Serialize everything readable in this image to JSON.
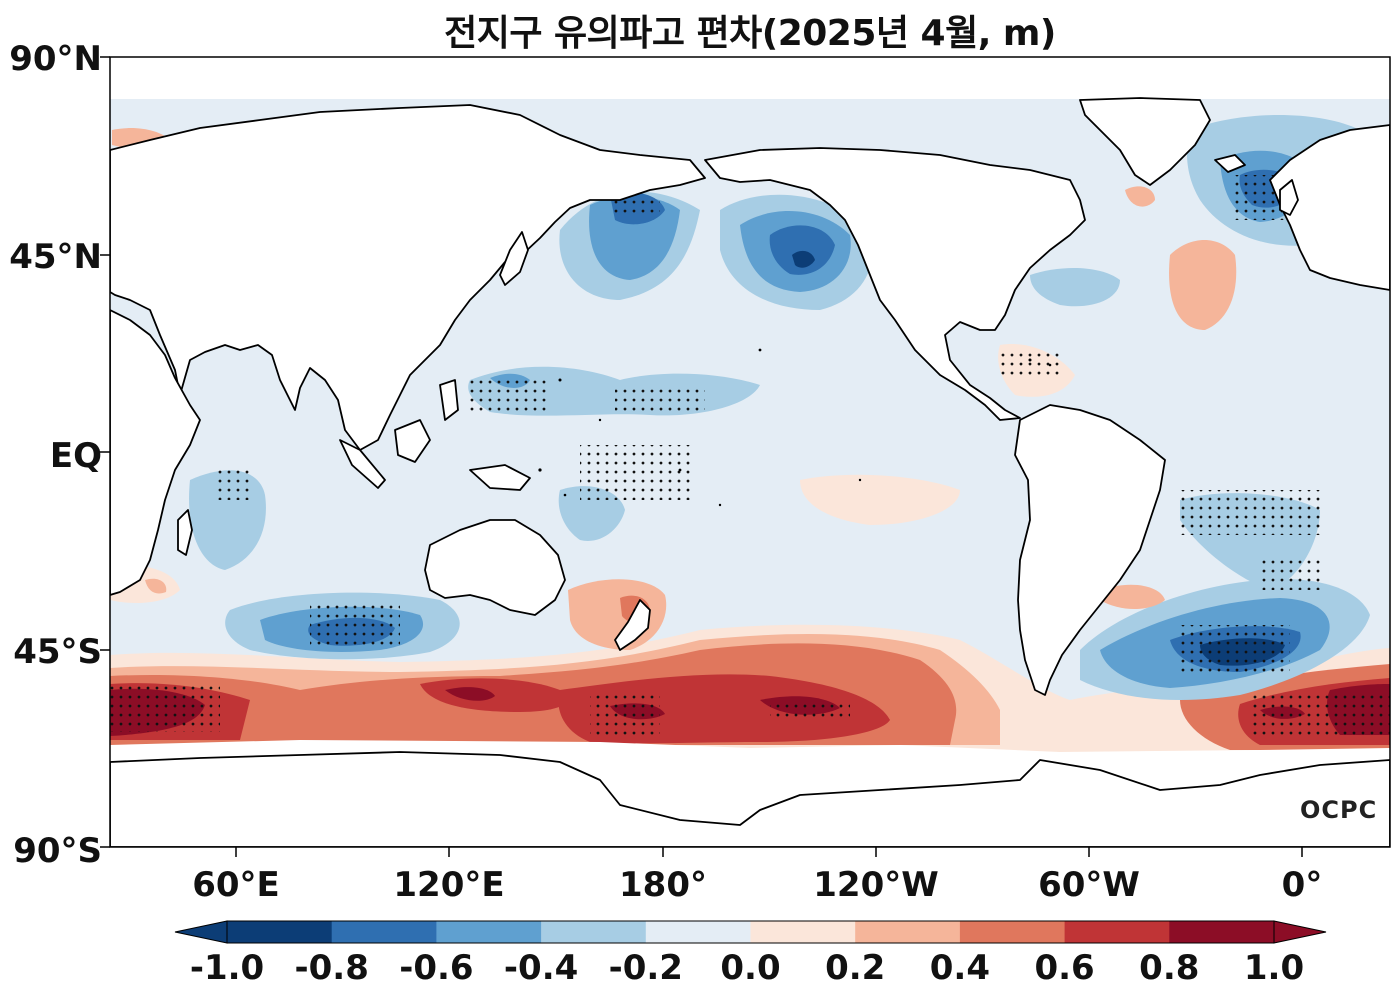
{
  "title": "전지구 유의파고 편차(2025년 4월, m)",
  "lat_labels": [
    "90°N",
    "45°N",
    "EQ",
    "45°S",
    "90°S"
  ],
  "lon_labels": [
    "60°E",
    "120°E",
    "180°",
    "120°W",
    "60°W",
    "0°"
  ],
  "colorbar": {
    "ticks": [
      "-1.0",
      "-0.8",
      "-0.6",
      "-0.4",
      "-0.2",
      "0.0",
      "0.2",
      "0.4",
      "0.6",
      "0.8",
      "1.0"
    ],
    "colors": [
      "#0c3d76",
      "#2f6fb1",
      "#5fa0d0",
      "#a7cde4",
      "#e4edf5",
      "#fbe6da",
      "#f5b59a",
      "#e0775d",
      "#c03436",
      "#8c0d26"
    ]
  },
  "watermark": "OCPC"
}
